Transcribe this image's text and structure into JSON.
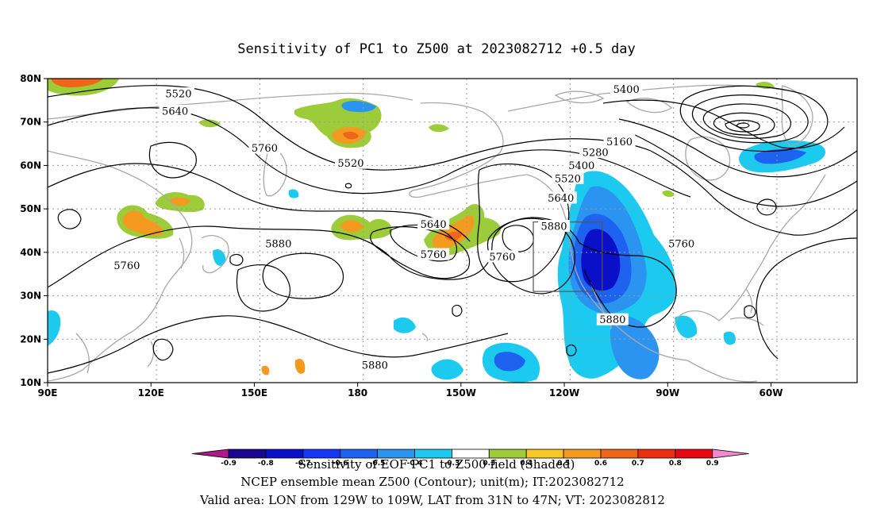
{
  "title": "Sensitivity of PC1 to Z500 at 2023082712 +0.5 day",
  "map": {
    "lon_labels": [
      "90E",
      "120E",
      "150E",
      "180",
      "150W",
      "120W",
      "90W",
      "60W"
    ],
    "lat_labels": [
      "80N",
      "70N",
      "60N",
      "50N",
      "40N",
      "30N",
      "20N",
      "10N"
    ],
    "contour_labels": [
      {
        "text": "5520",
        "lon": 128,
        "lat": 76.5
      },
      {
        "text": "5640",
        "lon": 127,
        "lat": 72.5
      },
      {
        "text": "5520",
        "lon": 178,
        "lat": 60.5
      },
      {
        "text": "5760",
        "lon": 153,
        "lat": 64
      },
      {
        "text": "5400",
        "lon": 258,
        "lat": 77.5
      },
      {
        "text": "5160",
        "lon": 256,
        "lat": 65.5
      },
      {
        "text": "5280",
        "lon": 249,
        "lat": 63
      },
      {
        "text": "5400",
        "lon": 245,
        "lat": 60
      },
      {
        "text": "5520",
        "lon": 241,
        "lat": 57
      },
      {
        "text": "5640",
        "lon": 239,
        "lat": 52.5
      },
      {
        "text": "5640",
        "lon": 202,
        "lat": 46.5
      },
      {
        "text": "5880",
        "lon": 157,
        "lat": 42
      },
      {
        "text": "5760",
        "lon": 202,
        "lat": 39.5
      },
      {
        "text": "5760",
        "lon": 222,
        "lat": 39
      },
      {
        "text": "5880",
        "lon": 237,
        "lat": 46
      },
      {
        "text": "5760",
        "lon": 274,
        "lat": 42
      },
      {
        "text": "5760",
        "lon": 113,
        "lat": 37
      },
      {
        "text": "5880",
        "lon": 254,
        "lat": 24.5
      },
      {
        "text": "5880",
        "lon": 185,
        "lat": 14
      }
    ],
    "valid_area_box": {
      "lon_min": 231,
      "lon_max": 251,
      "lat_min": 31,
      "lat_max": 47
    },
    "colors": {
      "contour": "#000000",
      "coast": "#a8a8a8",
      "grid": "#9a9a9a"
    }
  },
  "colorbar": {
    "ticks": [
      "-0.9",
      "-0.8",
      "-0.7",
      "-0.6",
      "-0.5",
      "-0.4",
      "-0.3",
      "0.3",
      "0.4",
      "0.5",
      "0.6",
      "0.7",
      "0.8",
      "0.9"
    ],
    "colors": [
      "#b0188a",
      "#1a0590",
      "#0a10c8",
      "#1536f2",
      "#1e62f0",
      "#2a94f0",
      "#1ccaf0",
      "#ffffff",
      "#9ccc3a",
      "#f6c828",
      "#f49a20",
      "#f06618",
      "#ea3010",
      "#e80810",
      "#f08ad0"
    ]
  },
  "captions": {
    "line1": "Sensitivity of EOF PC1 to Z500 field (Shaded)",
    "line2": "NCEP ensemble mean Z500 (Contour); unit(m); IT:2023082712",
    "line3": "Valid area: LON from 129W to 109W, LAT from 31N to 47N; VT: 2023082812"
  }
}
